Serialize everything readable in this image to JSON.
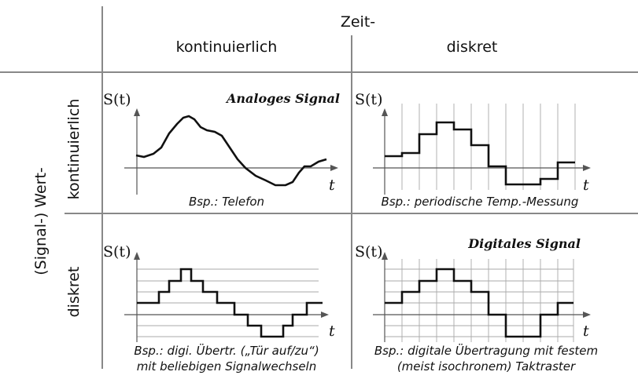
{
  "header": {
    "time_axis_label": "Zeit-",
    "time_continuous": "kontinuierlich",
    "time_discrete": "diskret",
    "value_axis_label": "(Signal-) Wert-",
    "value_continuous": "kontinuierlich",
    "value_discrete": "diskret"
  },
  "panels": {
    "analog": {
      "y_label": "S(t)",
      "x_label": "t",
      "title": "Analoges Signal",
      "caption_1": "Bsp.: Telefon"
    },
    "sampled": {
      "y_label": "S(t)",
      "x_label": "t",
      "caption_1": "Bsp.: periodische Temp.-Messung"
    },
    "quantized": {
      "y_label": "S(t)",
      "x_label": "t",
      "caption_1": "Bsp.: digi. Übertr. („Tür auf/zu“)",
      "caption_2": "mit beliebigen Signalwechseln"
    },
    "digital": {
      "y_label": "S(t)",
      "x_label": "t",
      "title": "Digitales Signal",
      "caption_1": "Bsp.: digitale Übertragung mit festem",
      "caption_2": "(meist isochronem) Taktraster"
    }
  }
}
